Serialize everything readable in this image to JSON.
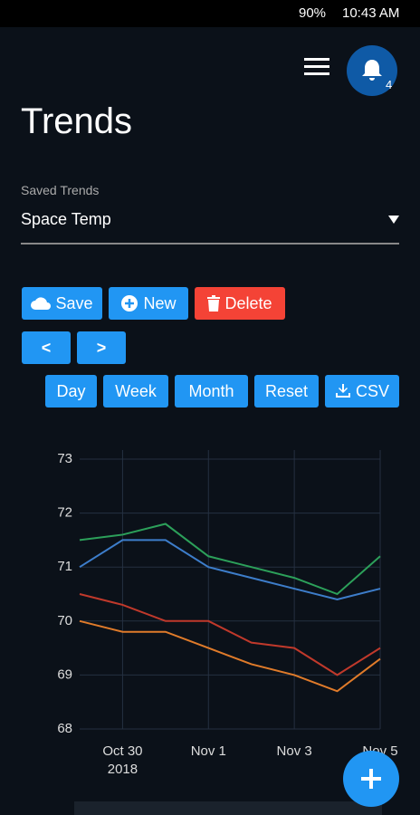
{
  "status_bar": {
    "battery": "90%",
    "time": "10:43 AM"
  },
  "header": {
    "notification_count": "4",
    "title": "Trends"
  },
  "saved_trends": {
    "label": "Saved Trends",
    "selected": "Space Temp"
  },
  "buttons": {
    "save": "Save",
    "new": "New",
    "delete": "Delete",
    "prev": "<",
    "next": ">",
    "day": "Day",
    "week": "Week",
    "month": "Month",
    "reset": "Reset",
    "csv": "CSV"
  },
  "chart_data": {
    "type": "line",
    "x": [
      "2018-10-29",
      "2018-10-30",
      "2018-10-31",
      "2018-11-01",
      "2018-11-02",
      "2018-11-03",
      "2018-11-04",
      "2018-11-05"
    ],
    "xlim": [
      "2018-10-29",
      "2018-11-05"
    ],
    "xticks": [
      {
        "value": "2018-10-30",
        "label": "Oct 30\n2018"
      },
      {
        "value": "2018-11-01",
        "label": "Nov 1"
      },
      {
        "value": "2018-11-03",
        "label": "Nov 3"
      },
      {
        "value": "2018-11-05",
        "label": "Nov 5"
      }
    ],
    "ylim": [
      68,
      73
    ],
    "yticks": [
      68,
      69,
      70,
      71,
      72,
      73
    ],
    "grid": true,
    "series": [
      {
        "color": "#3d7dca",
        "values": [
          71.0,
          71.5,
          71.5,
          71.0,
          70.8,
          70.6,
          70.4,
          70.6
        ]
      },
      {
        "color": "#2ca05a",
        "values": [
          71.5,
          71.6,
          71.8,
          71.2,
          71.0,
          70.8,
          70.5,
          71.2
        ]
      },
      {
        "color": "#c0392b",
        "values": [
          70.5,
          70.3,
          70.0,
          70.0,
          69.6,
          69.5,
          69.0,
          69.5
        ]
      },
      {
        "color": "#e07b2a",
        "values": [
          70.0,
          69.8,
          69.8,
          69.5,
          69.2,
          69.0,
          68.7,
          69.3
        ]
      }
    ]
  }
}
